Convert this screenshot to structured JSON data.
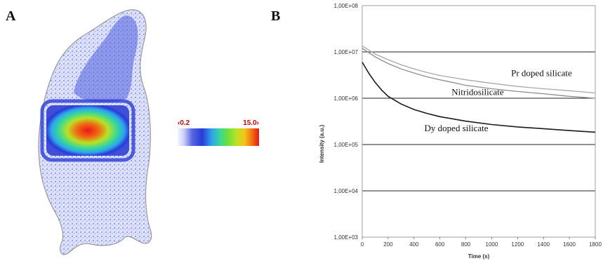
{
  "panels": {
    "a_label": "A",
    "b_label": "B"
  },
  "scale_bar": {
    "min_label": "0.2",
    "max_label": "15.0"
  },
  "mouse_image": {
    "description_icon": "mouse-luminescence-image"
  },
  "colors": {
    "series_dark": "#1a1a1a",
    "series_gray": "#8c8c8c",
    "series_light": "#a8a8a8",
    "gridline": "#222222",
    "scale_label": "#d00000"
  },
  "chart_data": {
    "type": "line",
    "xlabel": "Time (s)",
    "ylabel": "Intensity (a.u.)",
    "xlim": [
      0,
      1800
    ],
    "ylim": [
      1000,
      100000000
    ],
    "yscale": "log",
    "grid": "horizontal",
    "x_ticks": [
      0,
      200,
      400,
      600,
      800,
      1000,
      1200,
      1400,
      1600,
      1800
    ],
    "y_ticks": [
      {
        "value": 1000,
        "label": "1,00E+03"
      },
      {
        "value": 10000,
        "label": "1,00E+04"
      },
      {
        "value": 100000,
        "label": "1,00E+05"
      },
      {
        "value": 1000000,
        "label": "1,00E+06"
      },
      {
        "value": 10000000,
        "label": "1,00E+07"
      },
      {
        "value": 100000000,
        "label": "1,00E+08"
      }
    ],
    "series": [
      {
        "name": "Pr doped silicate",
        "color": "#a8a8a8",
        "x": [
          0,
          100,
          200,
          300,
          400,
          500,
          600,
          800,
          1000,
          1200,
          1400,
          1600,
          1800
        ],
        "y": [
          13500000,
          9000000,
          6800000,
          5300000,
          4300000,
          3600000,
          3100000,
          2500000,
          2100000,
          1800000,
          1600000,
          1450000,
          1300000
        ]
      },
      {
        "name": "Nitridosilicate",
        "color": "#8c8c8c",
        "x": [
          0,
          100,
          200,
          300,
          400,
          500,
          600,
          800,
          1000,
          1200,
          1400,
          1600,
          1800
        ],
        "y": [
          12000000,
          7800000,
          5600000,
          4300000,
          3500000,
          2900000,
          2500000,
          1900000,
          1600000,
          1400000,
          1250000,
          1100000,
          1000000
        ]
      },
      {
        "name": "Dy doped silicate",
        "color": "#1a1a1a",
        "x": [
          0,
          50,
          100,
          150,
          200,
          300,
          400,
          500,
          600,
          800,
          1000,
          1200,
          1400,
          1600,
          1800
        ],
        "y": [
          6000000,
          3500000,
          2200000,
          1500000,
          1100000,
          750000,
          570000,
          470000,
          400000,
          320000,
          270000,
          240000,
          220000,
          200000,
          185000
        ]
      }
    ],
    "annotations": [
      {
        "text": "Pr doped silicate",
        "x": 1150,
        "y": 3000000
      },
      {
        "text": "Nitridosilicate",
        "x": 690,
        "y": 1180000
      },
      {
        "text": "Dy doped silicate",
        "x": 480,
        "y": 195000
      }
    ]
  }
}
